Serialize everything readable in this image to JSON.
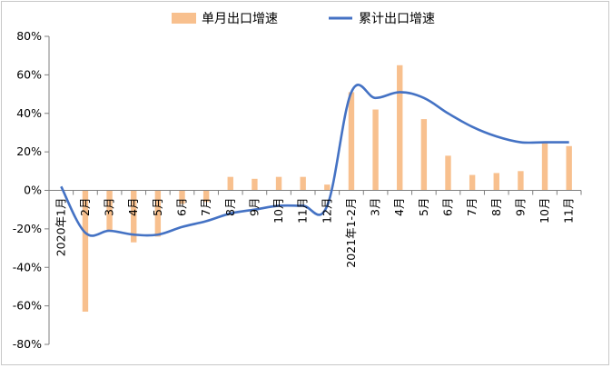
{
  "chart_data": {
    "type": "bar+line",
    "categories": [
      "2020年1月",
      "2月",
      "3月",
      "4月",
      "5月",
      "6月",
      "7月",
      "8月",
      "9月",
      "10月",
      "11月",
      "12月",
      "2021年1-2月",
      "3月",
      "4月",
      "5月",
      "6月",
      "7月",
      "8月",
      "9月",
      "10月",
      "11月"
    ],
    "series": [
      {
        "name": "单月出口增速",
        "kind": "bar",
        "color": "#F8C08E",
        "values": [
          null,
          -63.0,
          -21.0,
          -27.0,
          -24.0,
          -7.0,
          -6.0,
          7.0,
          6.0,
          7.0,
          7.0,
          3.0,
          51.0,
          42.0,
          65.0,
          37.0,
          18.0,
          8.0,
          9.0,
          10.0,
          25.0,
          23.0
        ]
      },
      {
        "name": "累计出口增速",
        "kind": "line",
        "color": "#4472C4",
        "values": [
          2.0,
          -22.0,
          -21.0,
          -23.0,
          -23.0,
          -19.0,
          -16.0,
          -12.0,
          -10.0,
          -8.0,
          -8.0,
          -8.0,
          51.0,
          48.0,
          51.0,
          48.0,
          40.0,
          33.0,
          28.0,
          25.0,
          25.0,
          25.0
        ]
      }
    ],
    "yaxis": {
      "min": -80,
      "max": 80,
      "step": 20,
      "tick_labels": [
        "80%",
        "60%",
        "40%",
        "20%",
        "0%",
        "-20%",
        "-40%",
        "-60%",
        "-80%"
      ]
    },
    "grid": false,
    "legend_position": "top-center"
  }
}
